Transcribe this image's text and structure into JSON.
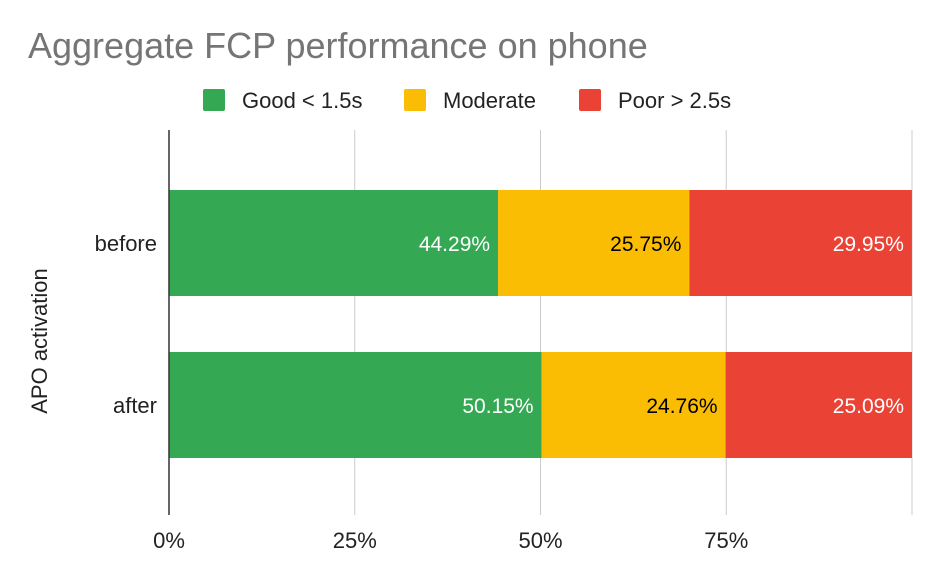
{
  "chart_data": {
    "type": "bar",
    "orientation": "horizontal",
    "stacked": true,
    "title": "Aggregate FCP performance on phone",
    "ylabel": "APO activation",
    "xlabel": "",
    "categories": [
      "before",
      "after"
    ],
    "series": [
      {
        "name": "Good < 1.5s",
        "color": "#34a853",
        "values": [
          44.29,
          50.15
        ],
        "labels": [
          "44.29%",
          "50.15%"
        ],
        "label_color": "#ffffff"
      },
      {
        "name": "Moderate",
        "color": "#fbbc04",
        "values": [
          25.75,
          24.76
        ],
        "labels": [
          "25.75%",
          "24.76%"
        ],
        "label_color": "#000000"
      },
      {
        "name": "Poor > 2.5s",
        "color": "#ea4335",
        "values": [
          29.95,
          25.09
        ],
        "labels": [
          "29.95%",
          "25.09%"
        ],
        "label_color": "#ffffff"
      }
    ],
    "xlim": [
      0,
      100
    ],
    "xticks": [
      0,
      25,
      50,
      75,
      100
    ],
    "xtick_labels": [
      "0%",
      "25%",
      "50%",
      "75%",
      ""
    ],
    "grid": true,
    "legend_position": "top"
  }
}
